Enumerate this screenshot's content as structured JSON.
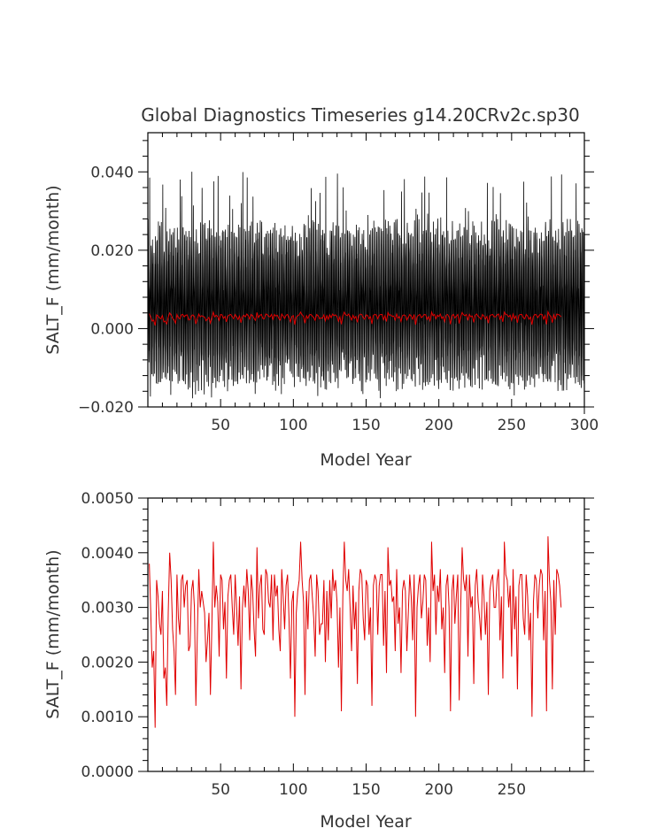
{
  "page": {
    "title": "Global Diagnostics Timeseries g14.20CRv2c.sp30"
  },
  "colors": {
    "monthly": "#000000",
    "annual": "#e00000",
    "axis": "#000000",
    "text": "#333333"
  },
  "chart_data": [
    {
      "type": "line",
      "title": "Global Diagnostics Timeseries g14.20CRv2c.sp30",
      "xlabel": "Model Year",
      "ylabel": "SALT_F (mm/month)",
      "xlim": [
        0,
        300
      ],
      "ylim": [
        -0.02,
        0.05
      ],
      "x_ticks": [
        50,
        100,
        150,
        200,
        250,
        300
      ],
      "x_tick_labels": [
        "50",
        "100",
        "150",
        "200",
        "250",
        "300"
      ],
      "y_ticks": [
        -0.02,
        0.0,
        0.02,
        0.04
      ],
      "y_tick_labels": [
        "−0.020",
        "0.000",
        "0.020",
        "0.040"
      ],
      "grid": false,
      "series": [
        {
          "color": "#000000",
          "style": "monthly dense oscillation",
          "min_approx": -0.018,
          "max_approx": 0.0405,
          "typical_low": -0.013,
          "typical_high": 0.028
        },
        {
          "color": "#e00000",
          "style": "annual mean (same as lower panel)",
          "source": "annual"
        }
      ]
    },
    {
      "type": "line",
      "title": "",
      "xlabel": "Model Year",
      "ylabel": "SALT_F (mm/month)",
      "xlim": [
        0,
        300
      ],
      "ylim": [
        0.0,
        0.005
      ],
      "x_ticks": [
        50,
        100,
        150,
        200,
        250
      ],
      "x_tick_labels": [
        "50",
        "100",
        "150",
        "200",
        "250"
      ],
      "y_ticks": [
        0.0,
        0.001,
        0.002,
        0.003,
        0.004,
        0.005
      ],
      "y_tick_labels": [
        "0.0000",
        "0.0010",
        "0.0020",
        "0.0030",
        "0.0040",
        "0.0050"
      ],
      "grid": false,
      "series": [
        {
          "color": "#e00000",
          "x_start": 1,
          "x_step": 1,
          "values": [
            0.0038,
            0.0029,
            0.0019,
            0.0022,
            0.0008,
            0.0035,
            0.0032,
            0.0027,
            0.0025,
            0.0033,
            0.0017,
            0.0019,
            0.0012,
            0.0029,
            0.004,
            0.0035,
            0.0026,
            0.0022,
            0.0014,
            0.0036,
            0.0028,
            0.0025,
            0.0035,
            0.0036,
            0.003,
            0.0034,
            0.0035,
            0.0022,
            0.0023,
            0.0033,
            0.0035,
            0.003,
            0.0012,
            0.0025,
            0.0037,
            0.003,
            0.0033,
            0.0031,
            0.0029,
            0.002,
            0.0024,
            0.0029,
            0.0014,
            0.0027,
            0.0042,
            0.003,
            0.0034,
            0.0031,
            0.0021,
            0.0036,
            0.0035,
            0.0026,
            0.0031,
            0.0017,
            0.0032,
            0.0035,
            0.0036,
            0.003,
            0.0025,
            0.0036,
            0.003,
            0.0023,
            0.0032,
            0.0015,
            0.003,
            0.0034,
            0.003,
            0.0037,
            0.0033,
            0.0024,
            0.0036,
            0.0033,
            0.0026,
            0.0021,
            0.0041,
            0.0028,
            0.0034,
            0.0036,
            0.0026,
            0.0025,
            0.0037,
            0.0036,
            0.0031,
            0.003,
            0.0036,
            0.0024,
            0.0036,
            0.0032,
            0.0034,
            0.0026,
            0.0022,
            0.0037,
            0.0032,
            0.0026,
            0.0034,
            0.0036,
            0.0028,
            0.0017,
            0.0031,
            0.0033,
            0.001,
            0.0029,
            0.0033,
            0.0035,
            0.0042,
            0.0035,
            0.0031,
            0.0014,
            0.0033,
            0.0026,
            0.0035,
            0.0036,
            0.0032,
            0.0028,
            0.0021,
            0.0036,
            0.0033,
            0.0025,
            0.0027,
            0.0027,
            0.0035,
            0.002,
            0.0033,
            0.0024,
            0.0035,
            0.0028,
            0.0037,
            0.0033,
            0.0035,
            0.0031,
            0.0019,
            0.003,
            0.0011,
            0.0032,
            0.0042,
            0.0035,
            0.0033,
            0.0037,
            0.003,
            0.0022,
            0.0034,
            0.0026,
            0.0031,
            0.0016,
            0.0033,
            0.0037,
            0.0036,
            0.0028,
            0.0024,
            0.0035,
            0.0034,
            0.0025,
            0.003,
            0.0012,
            0.0034,
            0.0036,
            0.0035,
            0.0025,
            0.0034,
            0.0036,
            0.0036,
            0.0023,
            0.0033,
            0.0018,
            0.0041,
            0.0034,
            0.0035,
            0.0031,
            0.0032,
            0.0022,
            0.0037,
            0.0027,
            0.003,
            0.0018,
            0.0033,
            0.0035,
            0.0033,
            0.0022,
            0.0029,
            0.0036,
            0.0032,
            0.0024,
            0.0036,
            0.001,
            0.003,
            0.0034,
            0.0036,
            0.0028,
            0.0031,
            0.0036,
            0.0035,
            0.0023,
            0.003,
            0.002,
            0.0042,
            0.0033,
            0.0036,
            0.0025,
            0.0034,
            0.0031,
            0.0037,
            0.0026,
            0.003,
            0.0018,
            0.0034,
            0.0036,
            0.003,
            0.0011,
            0.0033,
            0.0036,
            0.0027,
            0.0032,
            0.0036,
            0.0013,
            0.003,
            0.0041,
            0.0035,
            0.0033,
            0.0036,
            0.0021,
            0.0036,
            0.003,
            0.0032,
            0.0016,
            0.0034,
            0.0037,
            0.0031,
            0.0028,
            0.0024,
            0.0036,
            0.0032,
            0.0025,
            0.0031,
            0.0014,
            0.0033,
            0.0035,
            0.0036,
            0.003,
            0.003,
            0.0035,
            0.0037,
            0.0024,
            0.0032,
            0.0017,
            0.0042,
            0.0036,
            0.0035,
            0.003,
            0.0034,
            0.0021,
            0.0037,
            0.0026,
            0.0032,
            0.0015,
            0.0034,
            0.0036,
            0.0036,
            0.0028,
            0.0025,
            0.0036,
            0.0032,
            0.0024,
            0.0029,
            0.001,
            0.0031,
            0.0036,
            0.0035,
            0.0028,
            0.0034,
            0.0037,
            0.0036,
            0.0024,
            0.0033,
            0.0011,
            0.0043,
            0.0035,
            0.0031,
            0.0015,
            0.0035,
            0.0025,
            0.0037,
            0.0036,
            0.0034,
            0.003
          ]
        }
      ]
    }
  ]
}
